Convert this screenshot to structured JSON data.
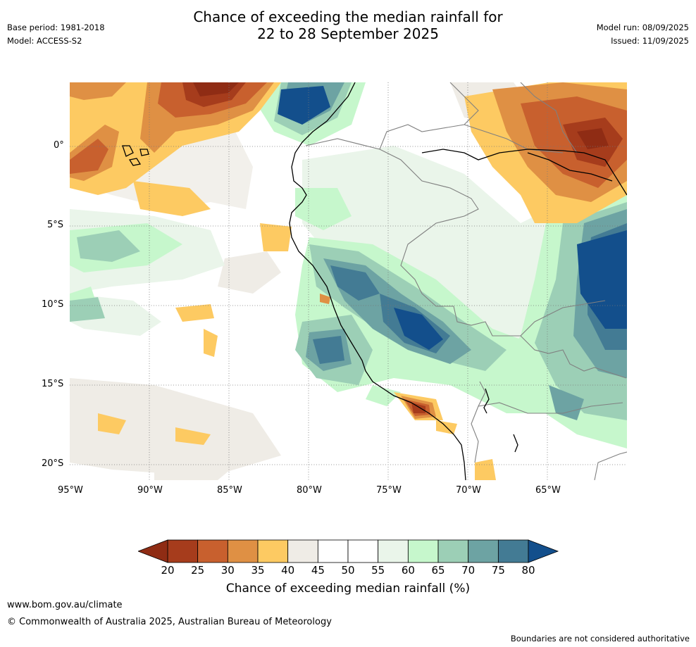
{
  "header": {
    "title_line1": "Chance of exceeding the median rainfall for",
    "title_line2": "22 to 28 September 2025",
    "base_period": "Base period: 1981-2018",
    "model": "Model: ACCESS-S2",
    "model_run": "Model run: 08/09/2025",
    "issued": "Issued: 11/09/2025"
  },
  "map": {
    "lat_labels": [
      "0°",
      "5°S",
      "10°S",
      "15°S",
      "20°S"
    ],
    "lon_labels": [
      "95°W",
      "90°W",
      "85°W",
      "80°W",
      "75°W",
      "70°W",
      "65°W"
    ],
    "grid": "dotted",
    "region": "Western South America and adjacent eastern Pacific"
  },
  "legend": {
    "ticks": [
      "20",
      "25",
      "30",
      "35",
      "40",
      "45",
      "50",
      "55",
      "60",
      "65",
      "70",
      "75",
      "80"
    ],
    "colors": [
      "#a63c1c",
      "#c8602e",
      "#df9044",
      "#fdca62",
      "#efece6",
      "#ffffff",
      "#ffffff",
      "#eaf5ea",
      "#c6f7cc",
      "#9ccfb6",
      "#6da3a3",
      "#437b94"
    ],
    "low_extend_color": "#8f2c14",
    "high_extend_color": "#134f8c",
    "label": "Chance of exceeding median rainfall (%)"
  },
  "footer": {
    "url": "www.bom.gov.au/climate",
    "copyright": "© Commonwealth of Australia 2025, Australian Bureau of Meteorology",
    "disclaimer": "Boundaries are not considered authoritative"
  }
}
